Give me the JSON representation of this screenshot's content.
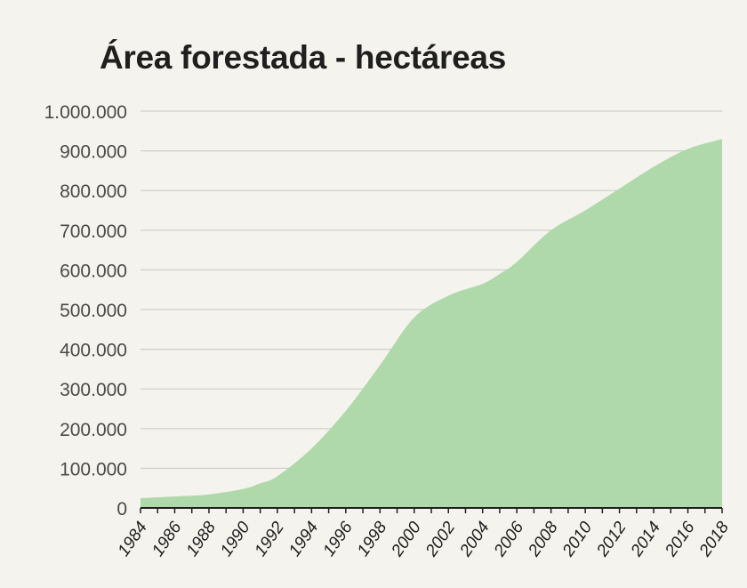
{
  "chart_data": {
    "type": "area",
    "title": "Área forestada - hectáreas",
    "xlabel": "",
    "ylabel": "",
    "x": [
      1984,
      1986,
      1988,
      1990,
      1991,
      1992,
      1994,
      1996,
      1998,
      2000,
      2002,
      2004,
      2005,
      2006,
      2008,
      2010,
      2012,
      2014,
      2016,
      2018
    ],
    "values": [
      25000,
      29000,
      34000,
      48000,
      62000,
      80000,
      150000,
      245000,
      360000,
      480000,
      535000,
      565000,
      590000,
      620000,
      700000,
      750000,
      805000,
      860000,
      905000,
      930000
    ],
    "xlim": [
      1984,
      2018
    ],
    "ylim": [
      0,
      1000000
    ],
    "yticks": [
      0,
      100000,
      200000,
      300000,
      400000,
      500000,
      600000,
      700000,
      800000,
      900000,
      1000000
    ],
    "ytick_labels": [
      "0",
      "100.000",
      "200.000",
      "300.000",
      "400.000",
      "500.000",
      "600.000",
      "700.000",
      "800.000",
      "900.000",
      "1.000.000"
    ],
    "xticks": [
      1984,
      1986,
      1988,
      1990,
      1992,
      1994,
      1996,
      1998,
      2000,
      2002,
      2004,
      2006,
      2008,
      2010,
      2012,
      2014,
      2016,
      2018
    ],
    "xtick_labels": [
      "1984",
      "1986",
      "1988",
      "1990",
      "1992",
      "1994",
      "1996",
      "1998",
      "2000",
      "2002",
      "2004",
      "2006",
      "2008",
      "2010",
      "2012",
      "2014",
      "2016",
      "2018"
    ],
    "grid": true,
    "legend": "none",
    "colors": {
      "area": "#b0d9ab",
      "grid": "#cfcdc9",
      "axis": "#1f1f1f",
      "background": "#f5f3ee"
    }
  }
}
